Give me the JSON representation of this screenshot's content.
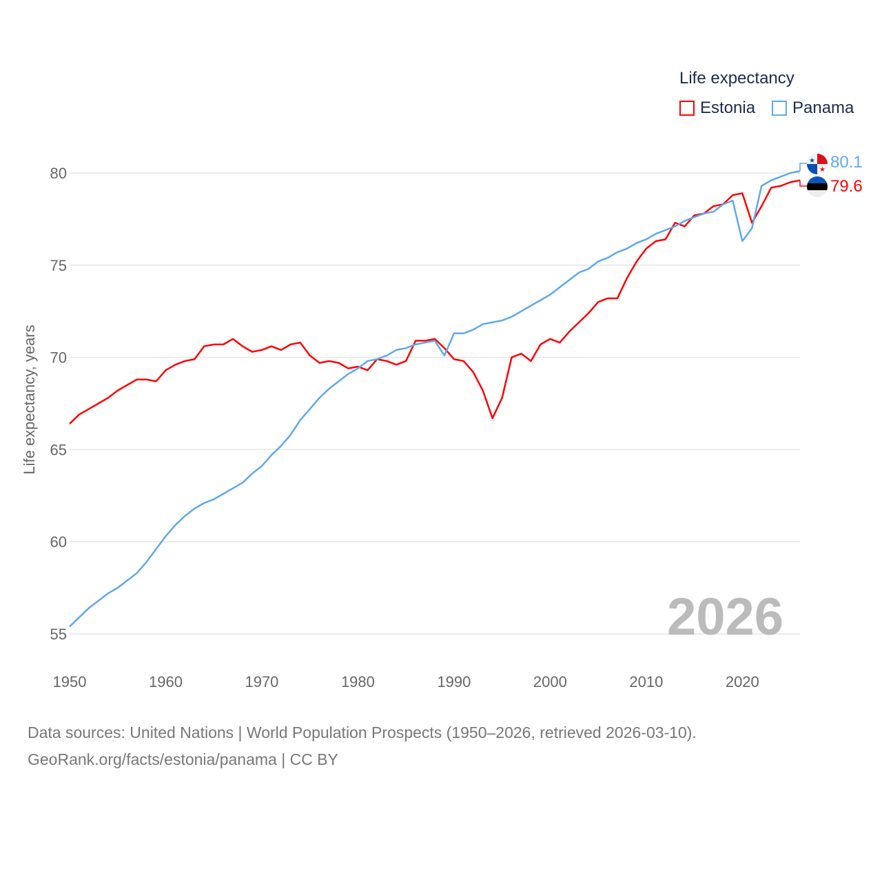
{
  "chart_data": {
    "type": "line",
    "title": "Life expectancy",
    "ylabel": "Life expectancy, years",
    "xlabel": "",
    "xlim": [
      1950,
      2026
    ],
    "ylim": [
      55,
      80
    ],
    "xticks": [
      1950,
      1960,
      1970,
      1980,
      1990,
      2000,
      2010,
      2020
    ],
    "yticks": [
      55,
      60,
      65,
      70,
      75,
      80
    ],
    "grid": true,
    "legend_position": "top-right",
    "current_year_label": "2026",
    "x": [
      1950,
      1951,
      1952,
      1953,
      1954,
      1955,
      1956,
      1957,
      1958,
      1959,
      1960,
      1961,
      1962,
      1963,
      1964,
      1965,
      1966,
      1967,
      1968,
      1969,
      1970,
      1971,
      1972,
      1973,
      1974,
      1975,
      1976,
      1977,
      1978,
      1979,
      1980,
      1981,
      1982,
      1983,
      1984,
      1985,
      1986,
      1987,
      1988,
      1989,
      1990,
      1991,
      1992,
      1993,
      1994,
      1995,
      1996,
      1997,
      1998,
      1999,
      2000,
      2001,
      2002,
      2003,
      2004,
      2005,
      2006,
      2007,
      2008,
      2009,
      2010,
      2011,
      2012,
      2013,
      2014,
      2015,
      2016,
      2017,
      2018,
      2019,
      2020,
      2021,
      2022,
      2023,
      2024,
      2025,
      2026
    ],
    "series": [
      {
        "name": "Estonia",
        "color": "#ff0000",
        "end_label": "79.6",
        "values": [
          66.4,
          66.9,
          67.2,
          67.5,
          67.8,
          68.2,
          68.5,
          68.8,
          68.8,
          68.7,
          69.3,
          69.6,
          69.8,
          69.9,
          70.6,
          70.7,
          70.7,
          71.0,
          70.6,
          70.3,
          70.4,
          70.6,
          70.4,
          70.7,
          70.8,
          70.1,
          69.7,
          69.8,
          69.7,
          69.4,
          69.5,
          69.3,
          69.9,
          69.8,
          69.6,
          69.8,
          70.9,
          70.9,
          71.0,
          70.5,
          69.9,
          69.8,
          69.2,
          68.2,
          66.7,
          67.8,
          70.0,
          70.2,
          69.8,
          70.7,
          71.0,
          70.8,
          71.4,
          71.9,
          72.4,
          73.0,
          73.2,
          73.2,
          74.3,
          75.2,
          75.9,
          76.3,
          76.4,
          77.3,
          77.1,
          77.7,
          77.8,
          78.2,
          78.3,
          78.8,
          78.9,
          77.3,
          78.2,
          79.2,
          79.3,
          79.5,
          79.6
        ]
      },
      {
        "name": "Panama",
        "color": "#5ea8ee",
        "end_label": "80.1",
        "values": [
          55.4,
          55.9,
          56.4,
          56.8,
          57.2,
          57.5,
          57.9,
          58.3,
          58.9,
          59.6,
          60.3,
          60.9,
          61.4,
          61.8,
          62.1,
          62.3,
          62.6,
          62.9,
          63.2,
          63.7,
          64.1,
          64.7,
          65.2,
          65.8,
          66.6,
          67.2,
          67.8,
          68.3,
          68.7,
          69.1,
          69.4,
          69.8,
          69.9,
          70.1,
          70.4,
          70.5,
          70.7,
          70.8,
          70.9,
          70.1,
          71.3,
          71.3,
          71.5,
          71.8,
          71.9,
          72.0,
          72.2,
          72.5,
          72.8,
          73.1,
          73.4,
          73.8,
          74.2,
          74.6,
          74.8,
          75.2,
          75.4,
          75.7,
          75.9,
          76.2,
          76.4,
          76.7,
          76.9,
          77.1,
          77.4,
          77.6,
          77.8,
          77.9,
          78.3,
          78.5,
          76.3,
          77.0,
          79.3,
          79.6,
          79.8,
          80.0,
          80.1
        ]
      }
    ]
  },
  "footer": {
    "line1": "Data sources: United Nations | World Population Prospects (1950–2026, retrieved 2026-03-10).",
    "line2": "GeoRank.org/facts/estonia/panama | CC BY"
  }
}
